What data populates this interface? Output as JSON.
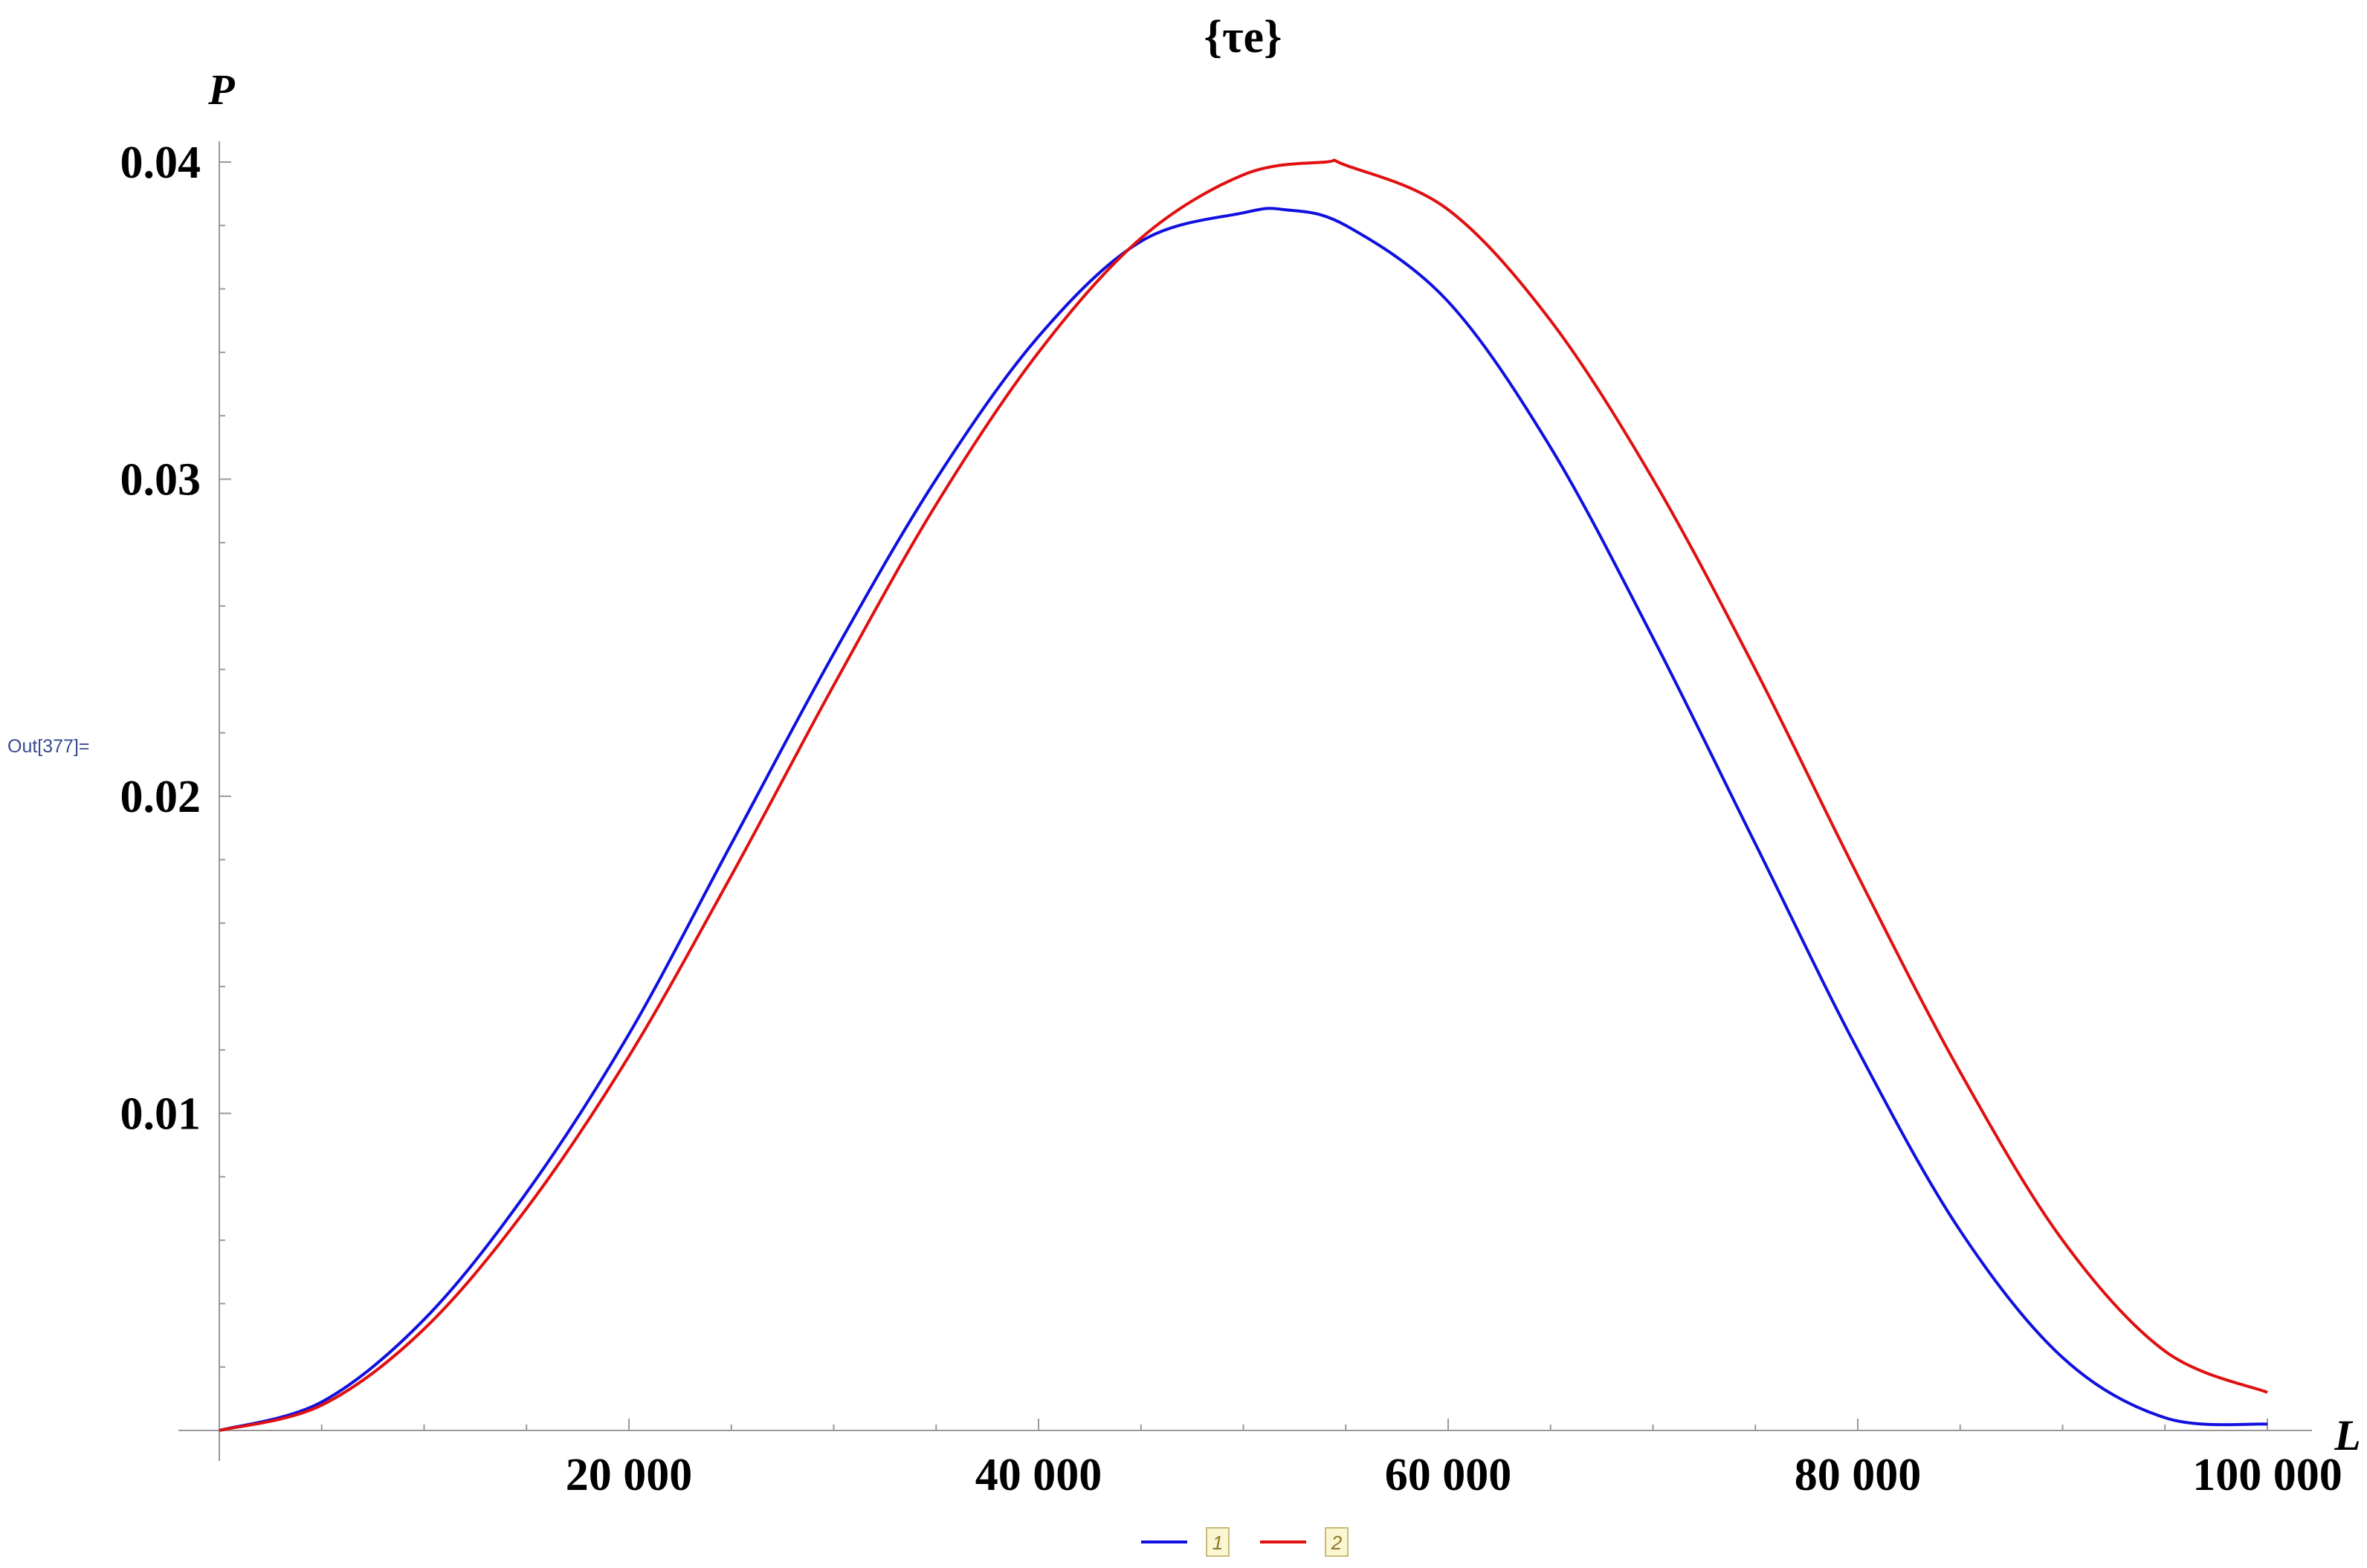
{
  "cell": {
    "out_label": "Out[377]="
  },
  "chart_data": {
    "type": "line",
    "title": "{τe}",
    "xlabel": "L",
    "ylabel": "P",
    "xlim": [
      0,
      100000
    ],
    "ylim": [
      0,
      0.04
    ],
    "x_ticks": [
      20000,
      40000,
      60000,
      80000,
      100000
    ],
    "x_tick_labels": [
      "20 000",
      "40 000",
      "60 000",
      "80 000",
      "100 000"
    ],
    "y_ticks": [
      0.01,
      0.02,
      0.03,
      0.04
    ],
    "y_tick_labels": [
      "0.01",
      "0.02",
      "0.03",
      "0.04"
    ],
    "grid": false,
    "legend_position": "bottom",
    "series": [
      {
        "name": "1",
        "color": "#1010e0",
        "x": [
          0,
          5000,
          10000,
          15000,
          20000,
          25000,
          30000,
          35000,
          40000,
          45000,
          50000,
          52000,
          55000,
          60000,
          65000,
          70000,
          75000,
          80000,
          85000,
          90000,
          95000,
          100000
        ],
        "y": [
          0,
          0.0009,
          0.0035,
          0.0075,
          0.0125,
          0.0185,
          0.0245,
          0.03,
          0.0345,
          0.0375,
          0.0384,
          0.0385,
          0.038,
          0.0356,
          0.031,
          0.025,
          0.0185,
          0.012,
          0.0063,
          0.0023,
          0.0004,
          0.0002
        ]
      },
      {
        "name": "2",
        "color": "#e01010",
        "x": [
          0,
          5000,
          10000,
          15000,
          20000,
          25000,
          30000,
          35000,
          40000,
          45000,
          50000,
          54000,
          55000,
          60000,
          65000,
          70000,
          75000,
          80000,
          85000,
          90000,
          95000,
          100000
        ],
        "y": [
          0,
          0.0008,
          0.0032,
          0.007,
          0.0118,
          0.0175,
          0.0235,
          0.0292,
          0.034,
          0.0376,
          0.0396,
          0.04,
          0.0399,
          0.0385,
          0.035,
          0.03,
          0.024,
          0.0175,
          0.0113,
          0.006,
          0.0025,
          0.0012
        ]
      }
    ]
  }
}
